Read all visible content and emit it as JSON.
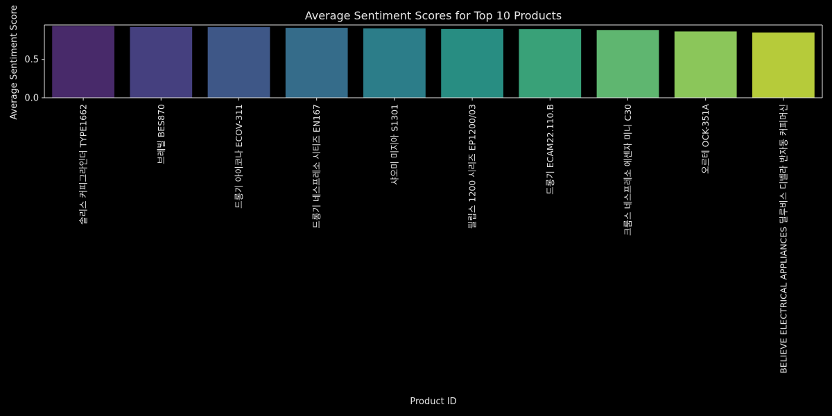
{
  "chart_data": {
    "type": "bar",
    "title": "Average Sentiment Scores for Top 10 Products",
    "xlabel": "Product ID",
    "ylabel": "Average Sentiment Score",
    "ylim": [
      0,
      0.95
    ],
    "yticks": [
      0.0,
      0.5
    ],
    "ytick_labels": [
      "0.0",
      "0.5"
    ],
    "grid": false,
    "categories": [
      "솔리스 커피그라인더 TYPE1662",
      "브레빌 BES870",
      "드롱기 아이코나 ECOV-311",
      "드롱기 네스프레소 시티즈 EN167",
      "샤오미 미지아 S1301",
      "필립스 1200 시리즈 EP1200/03",
      "드롱기 ECAM22.110.B",
      "크룹스 네스프레소 에센자 미니 C30",
      "오르테 OCK-351A",
      "BELIEVE ELECTRICAL APPLIANCES 딜루비스 디벨라 반자동 커피머신"
    ],
    "values": [
      0.937,
      0.924,
      0.922,
      0.913,
      0.905,
      0.897,
      0.895,
      0.884,
      0.865,
      0.852
    ],
    "colors": [
      "#482a6a",
      "#45407f",
      "#3e5787",
      "#356c8a",
      "#2c7d89",
      "#288d82",
      "#39a178",
      "#5fb670",
      "#8bc65a",
      "#b6cb3a"
    ]
  }
}
